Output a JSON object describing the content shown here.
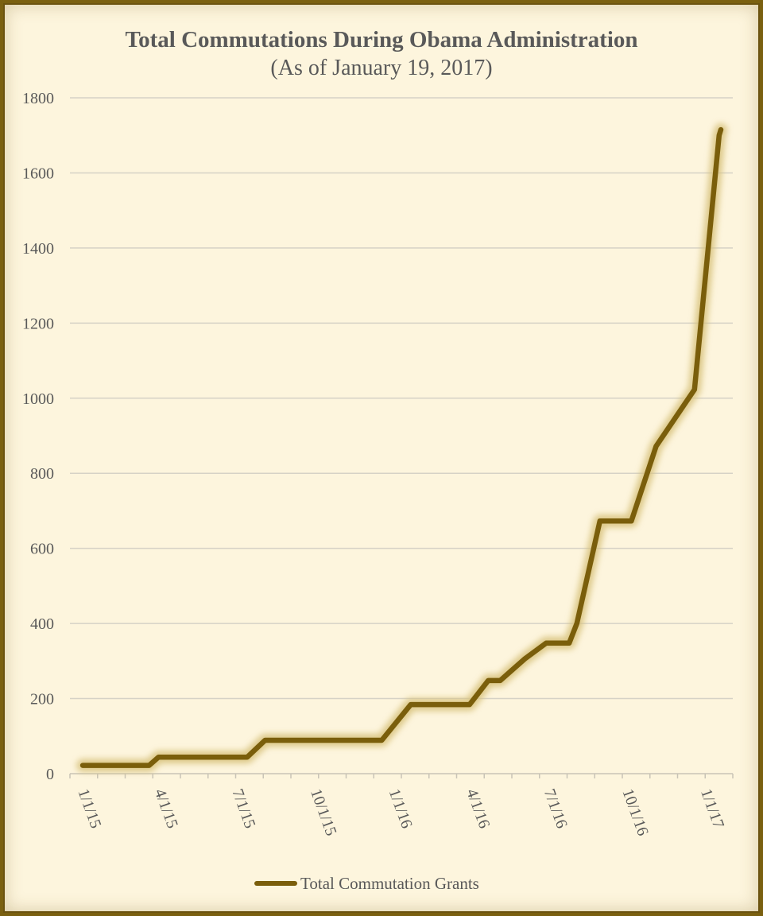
{
  "chart_data": {
    "type": "line",
    "title": "Total Commutations During Obama Administration",
    "subtitle": "(As of January 19, 2017)",
    "ylim": [
      0,
      1800
    ],
    "yticks": [
      "0",
      "200",
      "400",
      "600",
      "800",
      "1000",
      "1200",
      "1400",
      "1600",
      "1800"
    ],
    "x_tick_labels": [
      "1/1/15",
      "4/1/15",
      "7/1/15",
      "10/1/15",
      "1/1/16",
      "4/1/16",
      "7/1/16",
      "10/1/16",
      "1/1/17"
    ],
    "grid": true,
    "legend_position": "bottom",
    "series": [
      {
        "name": "Total Commutation Grants",
        "color": "#7a5e0b",
        "x": [
          "2015-01-01",
          "2015-03-20",
          "2015-03-31",
          "2015-07-13",
          "2015-08-03",
          "2015-12-18",
          "2016-01-21",
          "2016-03-30",
          "2016-04-21",
          "2016-05-05",
          "2016-06-03",
          "2016-06-28",
          "2016-07-25",
          "2016-08-03",
          "2016-08-30",
          "2016-10-06",
          "2016-11-04",
          "2016-12-19",
          "2017-01-17",
          "2017-01-19"
        ],
        "values": [
          22,
          22,
          44,
          44,
          89,
          89,
          184,
          184,
          248,
          248,
          306,
          348,
          348,
          400,
          673,
          673,
          872,
          1023,
          1700,
          1715
        ]
      }
    ]
  }
}
